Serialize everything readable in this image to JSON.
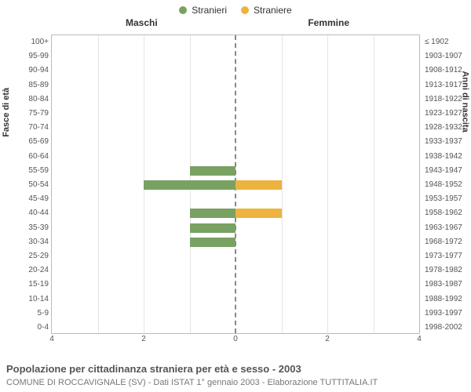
{
  "legend": {
    "male": {
      "label": "Stranieri",
      "color": "#79a162"
    },
    "female": {
      "label": "Straniere",
      "color": "#edb33f"
    }
  },
  "headers": {
    "left": "Maschi",
    "right": "Femmine"
  },
  "axis_titles": {
    "left": "Fasce di età",
    "right": "Anni di nascita"
  },
  "x": {
    "max": 4,
    "ticks": [
      4,
      2,
      0,
      2,
      4
    ]
  },
  "grid_color": "#e5e5e5",
  "center_line_color": "#888",
  "border_color": "#bbb",
  "bar_thickness": 12,
  "rows": [
    {
      "age": "100+",
      "year": "≤ 1902",
      "m": 0,
      "f": 0
    },
    {
      "age": "95-99",
      "year": "1903-1907",
      "m": 0,
      "f": 0
    },
    {
      "age": "90-94",
      "year": "1908-1912",
      "m": 0,
      "f": 0
    },
    {
      "age": "85-89",
      "year": "1913-1917",
      "m": 0,
      "f": 0
    },
    {
      "age": "80-84",
      "year": "1918-1922",
      "m": 0,
      "f": 0
    },
    {
      "age": "75-79",
      "year": "1923-1927",
      "m": 0,
      "f": 0
    },
    {
      "age": "70-74",
      "year": "1928-1932",
      "m": 0,
      "f": 0
    },
    {
      "age": "65-69",
      "year": "1933-1937",
      "m": 0,
      "f": 0
    },
    {
      "age": "60-64",
      "year": "1938-1942",
      "m": 0,
      "f": 0
    },
    {
      "age": "55-59",
      "year": "1943-1947",
      "m": 1,
      "f": 0
    },
    {
      "age": "50-54",
      "year": "1948-1952",
      "m": 2,
      "f": 1
    },
    {
      "age": "45-49",
      "year": "1953-1957",
      "m": 0,
      "f": 0
    },
    {
      "age": "40-44",
      "year": "1958-1962",
      "m": 1,
      "f": 1
    },
    {
      "age": "35-39",
      "year": "1963-1967",
      "m": 1,
      "f": 0
    },
    {
      "age": "30-34",
      "year": "1968-1972",
      "m": 1,
      "f": 0
    },
    {
      "age": "25-29",
      "year": "1973-1977",
      "m": 0,
      "f": 0
    },
    {
      "age": "20-24",
      "year": "1978-1982",
      "m": 0,
      "f": 0
    },
    {
      "age": "15-19",
      "year": "1983-1987",
      "m": 0,
      "f": 0
    },
    {
      "age": "10-14",
      "year": "1988-1992",
      "m": 0,
      "f": 0
    },
    {
      "age": "5-9",
      "year": "1993-1997",
      "m": 0,
      "f": 0
    },
    {
      "age": "0-4",
      "year": "1998-2002",
      "m": 0,
      "f": 0
    }
  ],
  "caption": "Popolazione per cittadinanza straniera per età e sesso - 2003",
  "subcaption": "COMUNE DI ROCCAVIGNALE (SV) - Dati ISTAT 1° gennaio 2003 - Elaborazione TUTTITALIA.IT"
}
